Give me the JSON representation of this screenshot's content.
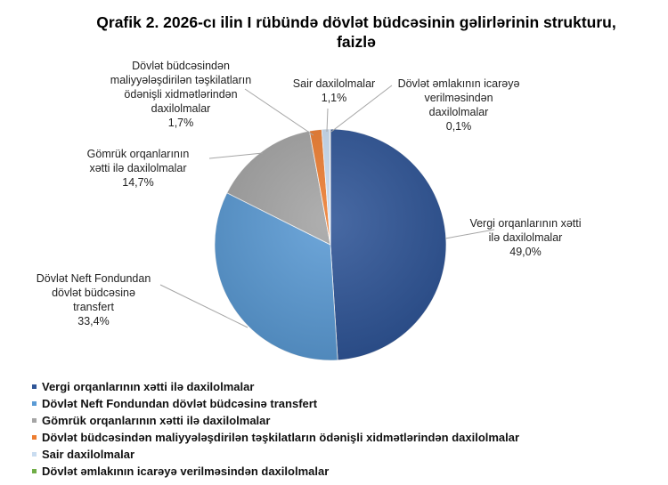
{
  "chart_data": {
    "type": "pie",
    "title": "Qrafik 2. 2026-cı ilin I rübündə dövlət büdcəsinin gəlirlərinin strukturu, faizlə",
    "title_line1": "Qrafik 2. 2026-cı ilin I rübündə dövlət büdcəsinin gəlirlərinin strukturu,",
    "title_line2": "faizlə",
    "unit": "%",
    "legend_position": "bottom-left",
    "slices": [
      {
        "name": "Vergi orqanlarının xətti ilə daxilolmalar",
        "label_lines": [
          "Vergi orqanlarının xətti",
          "ilə daxilolmalar"
        ],
        "value": 49.0,
        "value_label": "49,0%",
        "color": "#2f5597"
      },
      {
        "name": "Dövlət Neft Fondundan dövlət büdcəsinə transfert",
        "label_lines": [
          "Dövlət Neft Fondundan",
          "dövlət büdcəsinə",
          "transfert"
        ],
        "value": 33.4,
        "value_label": "33,4%",
        "color": "#5b9bd5"
      },
      {
        "name": "Gömrük orqanlarının xətti ilə daxilolmalar",
        "label_lines": [
          "Gömrük orqanlarının",
          "xətti ilə daxilolmalar"
        ],
        "value": 14.7,
        "value_label": "14,7%",
        "color": "#a5a5a5"
      },
      {
        "name": "Dövlət büdcəsindən maliyyələşdirilən təşkilatların ödənişli xidmətlərindən daxilolmalar",
        "label_lines": [
          "Dövlət büdcəsindən",
          "maliyyələşdirilən təşkilatların",
          "ödənişli xidmətlərindən",
          "daxilolmalar"
        ],
        "value": 1.7,
        "value_label": "1,7%",
        "color": "#ed7d31"
      },
      {
        "name": "Sair daxilolmalar",
        "label_lines": [
          "Sair daxilolmalar"
        ],
        "value": 1.1,
        "value_label": "1,1%",
        "color": "#c9dcf0"
      },
      {
        "name": "Dövlət əmlakının icarəyə verilməsindən daxilolmalar",
        "label_lines": [
          "Dövlət əmlakının icarəyə",
          "verilməsindən",
          "daxilolmalar"
        ],
        "value": 0.1,
        "value_label": "0,1%",
        "color": "#70ad47"
      }
    ]
  }
}
